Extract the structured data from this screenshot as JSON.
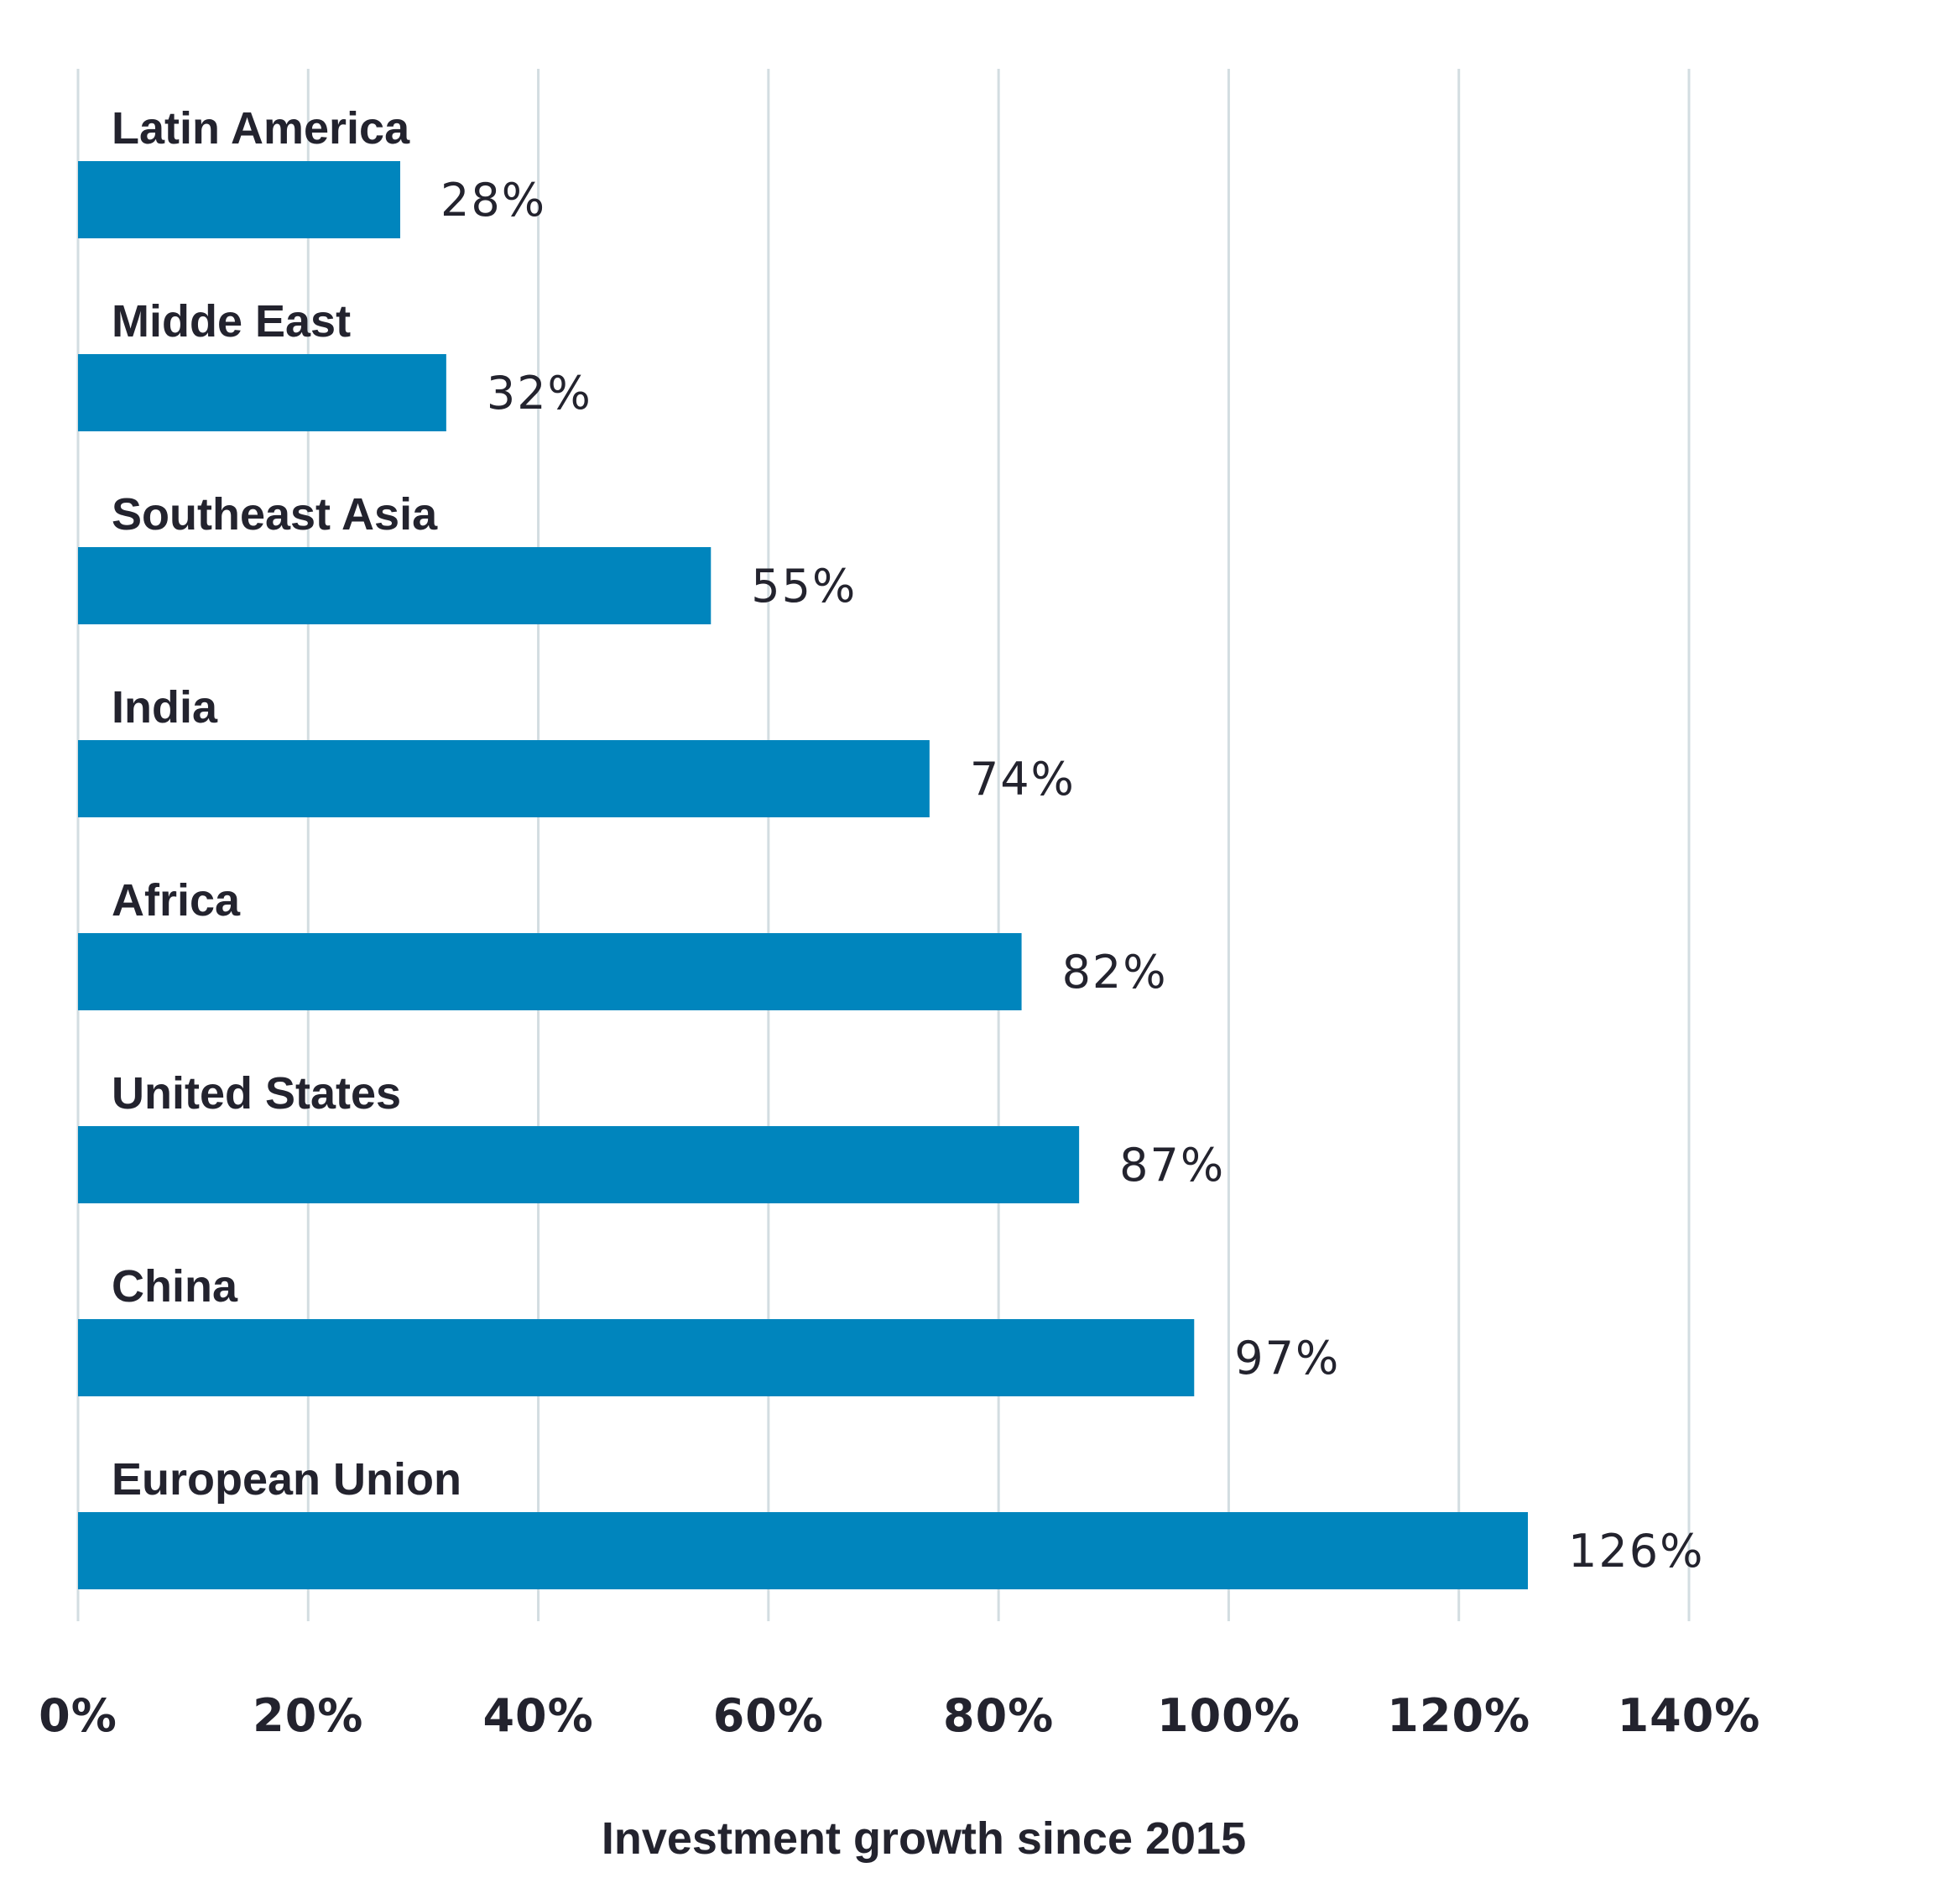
{
  "chart_data": {
    "type": "bar",
    "orientation": "horizontal",
    "categories": [
      "Latin America",
      "Midde East",
      "Southeast Asia",
      "India",
      "Africa",
      "United States",
      "China",
      "European Union"
    ],
    "values": [
      28,
      32,
      55,
      74,
      82,
      87,
      97,
      126
    ],
    "value_labels": [
      "28%",
      "32%",
      "55%",
      "74%",
      "82%",
      "87%",
      "97%",
      "126%"
    ],
    "xlim": [
      0,
      140
    ],
    "xticks": [
      0,
      20,
      40,
      60,
      80,
      100,
      120,
      140
    ],
    "xtick_labels": [
      "0%",
      "20%",
      "40%",
      "60%",
      "80%",
      "100%",
      "120%",
      "140%"
    ],
    "xlabel": "Investment growth since 2015",
    "grid": "vertical",
    "bar_color": "#0085bd",
    "grid_color": "#d3dde1",
    "text_color": "#23232e"
  }
}
